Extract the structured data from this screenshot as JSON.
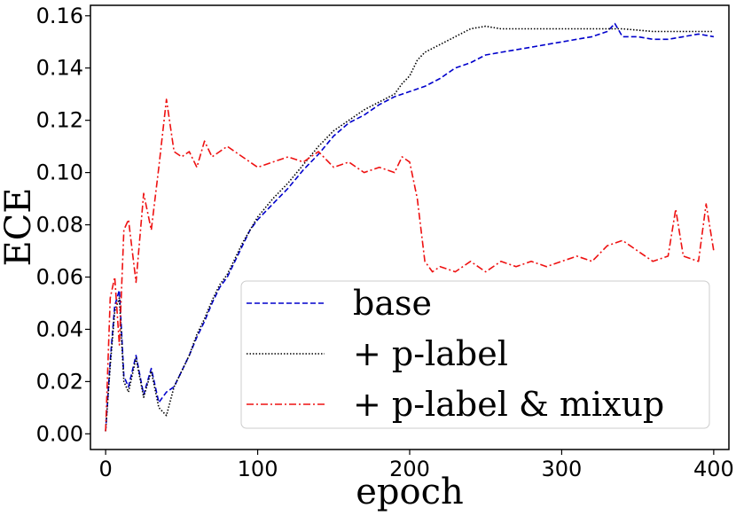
{
  "chart_data": {
    "type": "line",
    "xlabel": "epoch",
    "ylabel": "ECE",
    "xlim": [
      -10,
      410
    ],
    "ylim": [
      -0.006,
      0.164
    ],
    "xticks": [
      0,
      100,
      200,
      300,
      400
    ],
    "yticks": [
      0.0,
      0.02,
      0.04,
      0.06,
      0.08,
      0.1,
      0.12,
      0.14,
      0.16
    ],
    "xtick_labels": [
      "0",
      "100",
      "200",
      "300",
      "400"
    ],
    "ytick_labels": [
      "0.00",
      "0.02",
      "0.04",
      "0.06",
      "0.08",
      "0.10",
      "0.12",
      "0.14",
      "0.16"
    ],
    "grid": false,
    "legend_position": "lower-right",
    "series": [
      {
        "name": "base",
        "color": "#0000cc",
        "dash": "dashed",
        "x": [
          0,
          3,
          6,
          9,
          12,
          15,
          20,
          25,
          30,
          35,
          40,
          45,
          50,
          55,
          60,
          65,
          70,
          75,
          80,
          85,
          90,
          95,
          100,
          110,
          120,
          130,
          140,
          150,
          160,
          170,
          180,
          190,
          200,
          210,
          220,
          230,
          240,
          250,
          260,
          270,
          280,
          290,
          300,
          310,
          320,
          330,
          335,
          340,
          350,
          360,
          370,
          380,
          390,
          400
        ],
        "y": [
          0.001,
          0.028,
          0.049,
          0.055,
          0.022,
          0.018,
          0.03,
          0.015,
          0.025,
          0.012,
          0.016,
          0.018,
          0.024,
          0.03,
          0.037,
          0.043,
          0.05,
          0.056,
          0.06,
          0.066,
          0.072,
          0.078,
          0.082,
          0.088,
          0.094,
          0.101,
          0.107,
          0.114,
          0.119,
          0.122,
          0.126,
          0.129,
          0.131,
          0.133,
          0.136,
          0.14,
          0.142,
          0.145,
          0.146,
          0.147,
          0.148,
          0.149,
          0.15,
          0.151,
          0.152,
          0.154,
          0.157,
          0.152,
          0.152,
          0.151,
          0.151,
          0.152,
          0.153,
          0.152
        ]
      },
      {
        "name": "+ p-label",
        "color": "#000000",
        "dash": "dotted",
        "x": [
          0,
          3,
          6,
          9,
          12,
          15,
          20,
          25,
          30,
          35,
          40,
          45,
          50,
          55,
          60,
          65,
          70,
          75,
          80,
          85,
          90,
          95,
          100,
          110,
          120,
          130,
          140,
          150,
          160,
          170,
          180,
          190,
          195,
          200,
          205,
          210,
          220,
          230,
          240,
          250,
          260,
          270,
          280,
          290,
          300,
          320,
          340,
          360,
          380,
          400
        ],
        "y": [
          0.001,
          0.026,
          0.047,
          0.052,
          0.02,
          0.016,
          0.029,
          0.014,
          0.024,
          0.01,
          0.007,
          0.018,
          0.024,
          0.03,
          0.038,
          0.044,
          0.051,
          0.057,
          0.061,
          0.067,
          0.073,
          0.078,
          0.083,
          0.09,
          0.096,
          0.103,
          0.11,
          0.116,
          0.12,
          0.124,
          0.127,
          0.13,
          0.134,
          0.137,
          0.143,
          0.146,
          0.149,
          0.152,
          0.155,
          0.156,
          0.155,
          0.155,
          0.155,
          0.155,
          0.155,
          0.155,
          0.155,
          0.154,
          0.154,
          0.154
        ]
      },
      {
        "name": "+ p-label & mixup",
        "color": "#ee1111",
        "dash": "dashdot",
        "x": [
          0,
          3,
          6,
          9,
          12,
          15,
          20,
          25,
          30,
          35,
          40,
          45,
          50,
          55,
          60,
          65,
          70,
          75,
          80,
          90,
          100,
          110,
          120,
          130,
          140,
          150,
          160,
          170,
          180,
          190,
          195,
          200,
          205,
          210,
          215,
          220,
          230,
          240,
          250,
          260,
          270,
          280,
          290,
          300,
          310,
          320,
          330,
          340,
          350,
          360,
          370,
          375,
          380,
          390,
          395,
          400
        ],
        "y": [
          0.001,
          0.052,
          0.06,
          0.034,
          0.078,
          0.082,
          0.058,
          0.092,
          0.078,
          0.102,
          0.128,
          0.108,
          0.106,
          0.108,
          0.102,
          0.112,
          0.106,
          0.108,
          0.11,
          0.106,
          0.102,
          0.104,
          0.106,
          0.104,
          0.108,
          0.102,
          0.104,
          0.1,
          0.102,
          0.1,
          0.106,
          0.104,
          0.09,
          0.066,
          0.062,
          0.064,
          0.062,
          0.066,
          0.062,
          0.066,
          0.064,
          0.066,
          0.064,
          0.066,
          0.068,
          0.066,
          0.072,
          0.074,
          0.07,
          0.066,
          0.068,
          0.086,
          0.068,
          0.066,
          0.088,
          0.07
        ]
      }
    ]
  }
}
